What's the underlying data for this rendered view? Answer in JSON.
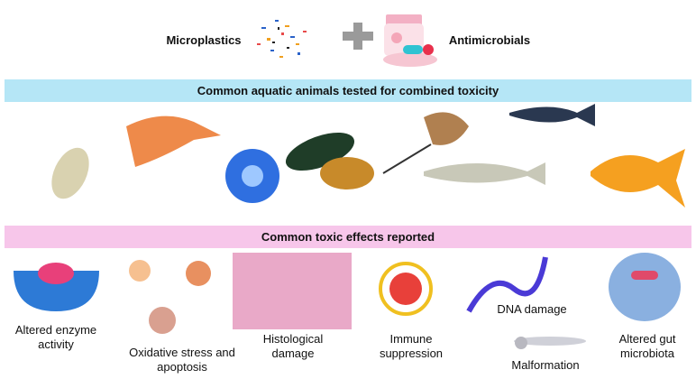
{
  "header": {
    "left": "Microplastics",
    "right": "Antimicrobials"
  },
  "animals_banner": "Common aquatic animals tested for combined toxicity",
  "effects_banner": "Common toxic effects reported",
  "effects": [
    "Altered enzyme activity",
    "Oxidative stress and apoptosis",
    "Histological damage",
    "Immune suppression",
    "DNA damage",
    "Malformation",
    "Altered gut microbiota"
  ]
}
